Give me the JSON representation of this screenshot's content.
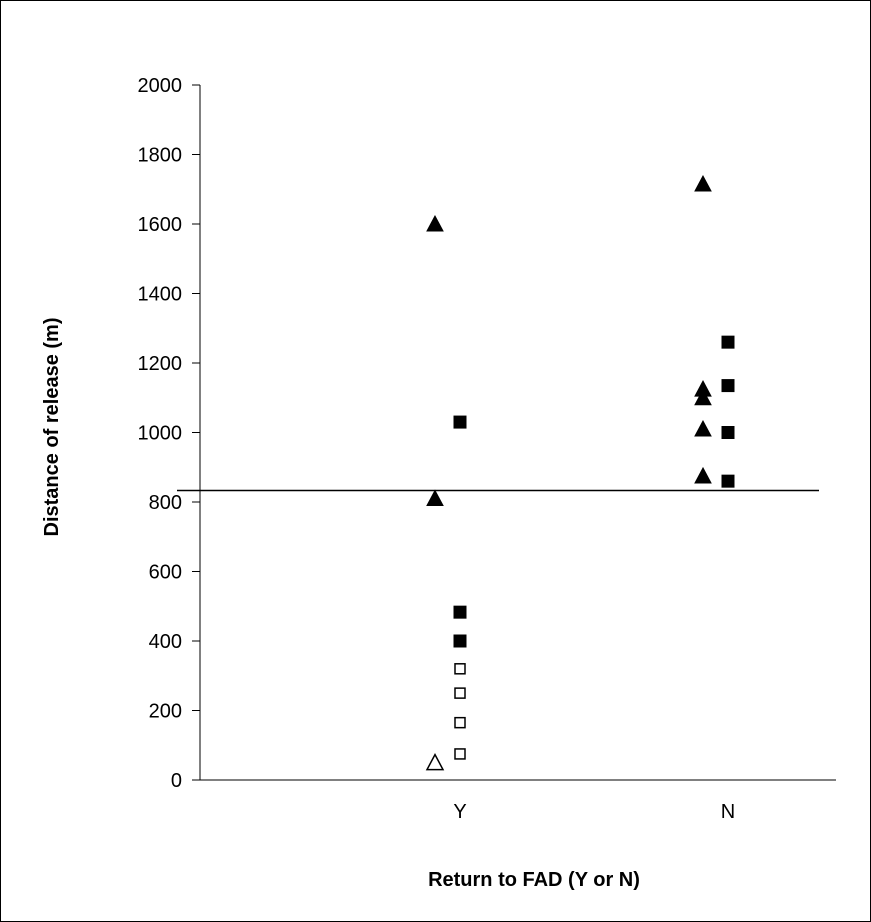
{
  "chart_data": {
    "type": "scatter",
    "title": "",
    "xlabel": "Return to FAD (Y or N)",
    "ylabel": "Distance of release (m)",
    "categories": [
      "Y",
      "N"
    ],
    "ylim": [
      0,
      2000
    ],
    "yticks": [
      "0",
      "200",
      "400",
      "600",
      "800",
      "1000",
      "1200",
      "1400",
      "1600",
      "1800",
      "2000"
    ],
    "grid": false,
    "legend": "none",
    "reference_line": {
      "y": 833
    },
    "series": [
      {
        "marker": "filled-triangle",
        "points": [
          {
            "x": "Y",
            "y": 1600
          },
          {
            "x": "Y",
            "y": 810
          },
          {
            "x": "N",
            "y": 1715
          },
          {
            "x": "N",
            "y": 1125
          },
          {
            "x": "N",
            "y": 1100
          },
          {
            "x": "N",
            "y": 1010
          },
          {
            "x": "N",
            "y": 875
          }
        ]
      },
      {
        "marker": "filled-square",
        "points": [
          {
            "x": "Y",
            "y": 1030
          },
          {
            "x": "Y",
            "y": 483
          },
          {
            "x": "Y",
            "y": 400
          },
          {
            "x": "N",
            "y": 1260
          },
          {
            "x": "N",
            "y": 1135
          },
          {
            "x": "N",
            "y": 1000
          },
          {
            "x": "N",
            "y": 860
          }
        ]
      },
      {
        "marker": "open-square",
        "points": [
          {
            "x": "Y",
            "y": 320
          },
          {
            "x": "Y",
            "y": 250
          },
          {
            "x": "Y",
            "y": 165
          },
          {
            "x": "Y",
            "y": 75
          }
        ]
      },
      {
        "marker": "open-triangle",
        "points": [
          {
            "x": "Y",
            "y": 50
          }
        ]
      }
    ]
  }
}
